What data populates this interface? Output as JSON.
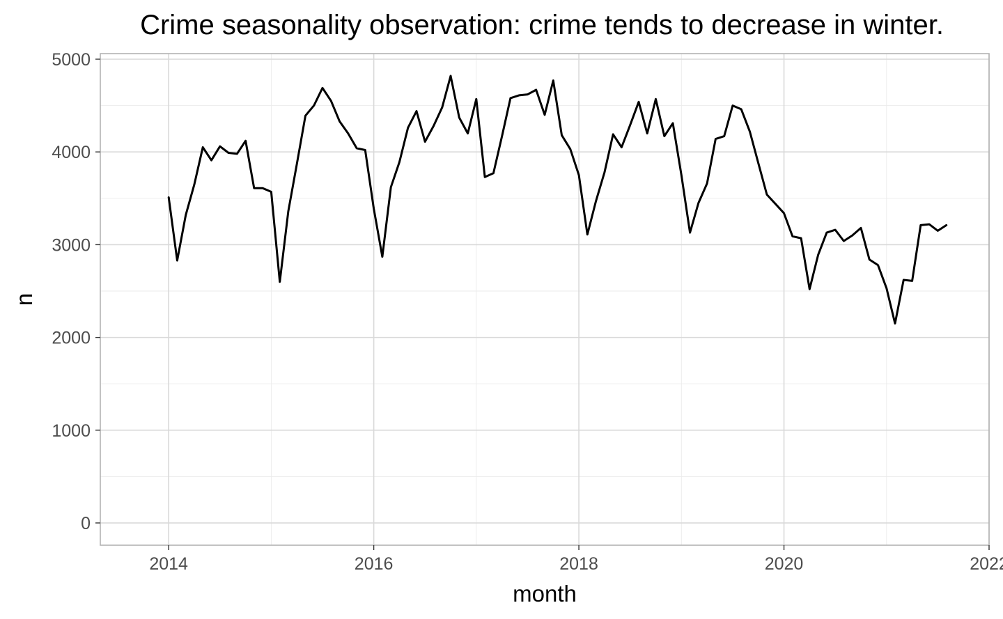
{
  "chart_data": {
    "type": "line",
    "title": "Crime seasonality observation: crime tends to decrease in winter.",
    "xlabel": "month",
    "ylabel": "n",
    "xlim": [
      "2013-05-01",
      "2022-01-01"
    ],
    "ylim": [
      -240,
      5060
    ],
    "x_ticks": [
      {
        "value": "2014-01-01",
        "label": "2014"
      },
      {
        "value": "2016-01-01",
        "label": "2016"
      },
      {
        "value": "2018-01-01",
        "label": "2018"
      },
      {
        "value": "2020-01-01",
        "label": "2020"
      },
      {
        "value": "2022-01-01",
        "label": "2022"
      }
    ],
    "y_ticks": [
      0,
      1000,
      2000,
      3000,
      4000,
      5000
    ],
    "y_tick_labels": [
      "0",
      "1000",
      "2000",
      "3000",
      "4000",
      "5000"
    ],
    "grid": true,
    "legend": "none",
    "line_color": "#000000",
    "x": [
      "2014-01",
      "2014-02",
      "2014-03",
      "2014-04",
      "2014-05",
      "2014-06",
      "2014-07",
      "2014-08",
      "2014-09",
      "2014-10",
      "2014-11",
      "2014-12",
      "2015-01",
      "2015-02",
      "2015-03",
      "2015-04",
      "2015-05",
      "2015-06",
      "2015-07",
      "2015-08",
      "2015-09",
      "2015-10",
      "2015-11",
      "2015-12",
      "2016-01",
      "2016-02",
      "2016-03",
      "2016-04",
      "2016-05",
      "2016-06",
      "2016-07",
      "2016-08",
      "2016-09",
      "2016-10",
      "2016-11",
      "2016-12",
      "2017-01",
      "2017-02",
      "2017-03",
      "2017-04",
      "2017-05",
      "2017-06",
      "2017-07",
      "2017-08",
      "2017-09",
      "2017-10",
      "2017-11",
      "2017-12",
      "2018-01",
      "2018-02",
      "2018-03",
      "2018-04",
      "2018-05",
      "2018-06",
      "2018-07",
      "2018-08",
      "2018-09",
      "2018-10",
      "2018-11",
      "2018-12",
      "2019-01",
      "2019-02",
      "2019-03",
      "2019-04",
      "2019-05",
      "2019-06",
      "2019-07",
      "2019-08",
      "2019-09",
      "2019-10",
      "2019-11",
      "2019-12",
      "2020-01",
      "2020-02",
      "2020-03",
      "2020-04",
      "2020-05",
      "2020-06",
      "2020-07",
      "2020-08",
      "2020-09",
      "2020-10",
      "2020-11",
      "2020-12",
      "2021-01",
      "2021-02",
      "2021-03",
      "2021-04",
      "2021-05",
      "2021-06",
      "2021-07",
      "2021-08"
    ],
    "series": [
      {
        "values": [
          3510,
          2830,
          3320,
          3650,
          4050,
          3910,
          4060,
          3990,
          3980,
          4120,
          3610,
          3610,
          3570,
          2600,
          3360,
          3870,
          4390,
          4500,
          4690,
          4550,
          4330,
          4200,
          4040,
          4020,
          3390,
          2870,
          3620,
          3890,
          4260,
          4440,
          4110,
          4280,
          4480,
          4820,
          4370,
          4200,
          4570,
          3730,
          3770,
          4170,
          4580,
          4610,
          4620,
          4670,
          4400,
          4770,
          4180,
          4030,
          3750,
          3110,
          3470,
          3780,
          4190,
          4050,
          4290,
          4540,
          4200,
          4570,
          4170,
          4310,
          3750,
          3130,
          3450,
          3660,
          4140,
          4170,
          4500,
          4460,
          4220,
          3880,
          3540,
          3440,
          3340,
          3090,
          3070,
          2520,
          2890,
          3130,
          3160,
          3040,
          3100,
          3180,
          2840,
          2780,
          2530,
          2150,
          2620,
          2610,
          3210,
          3220,
          3150,
          3210
        ]
      }
    ]
  }
}
